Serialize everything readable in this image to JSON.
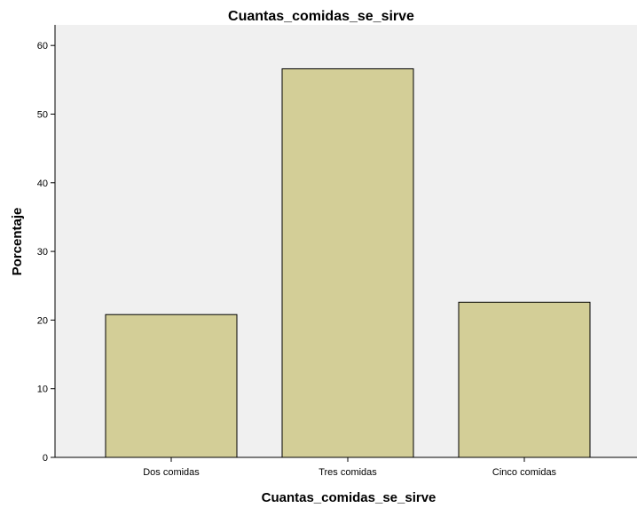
{
  "chart_data": {
    "type": "bar",
    "title": "Cuantas_comidas_se_sirve",
    "xlabel": "Cuantas_comidas_se_sirve",
    "ylabel": "Porcentaje",
    "categories": [
      "Dos comidas",
      "Tres comidas",
      "Cinco comidas"
    ],
    "values": [
      20.8,
      56.6,
      22.6
    ],
    "ylim": [
      0,
      63
    ],
    "yticks": [
      0,
      10,
      20,
      30,
      40,
      50,
      60
    ],
    "grid": false,
    "colors": {
      "plot_background": "#f0f0f0",
      "bar_fill": "#d3ce97",
      "bar_stroke": "#000000"
    }
  }
}
